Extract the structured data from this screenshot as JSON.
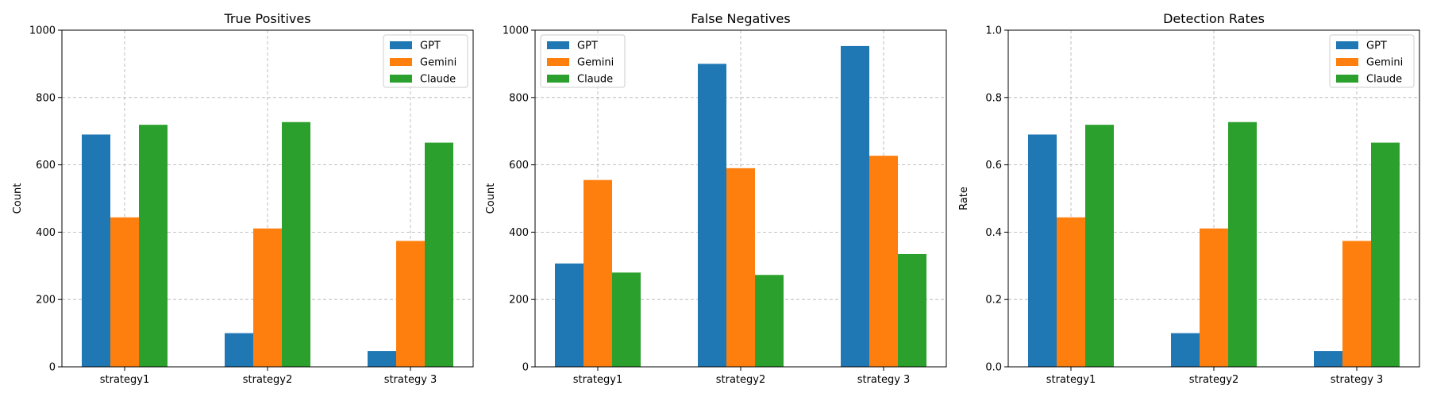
{
  "colors": {
    "GPT": "#1f77b4",
    "Gemini": "#ff7f0e",
    "Claude": "#2ca02c",
    "grid": "#b0b0b0",
    "axis": "#000000"
  },
  "chart_data": [
    {
      "type": "bar",
      "title": "True Positives",
      "xlabel": "",
      "ylabel": "Count",
      "ylim": [
        0,
        1000
      ],
      "yticks": [
        "0",
        "200",
        "400",
        "600",
        "800",
        "1000"
      ],
      "categories": [
        "strategy1",
        "strategy2",
        "strategy 3"
      ],
      "grid": true,
      "legend_position": "top-right",
      "series": [
        {
          "name": "GPT",
          "values": [
            690,
            100,
            47
          ]
        },
        {
          "name": "Gemini",
          "values": [
            444,
            411,
            374
          ]
        },
        {
          "name": "Claude",
          "values": [
            719,
            727,
            666
          ]
        }
      ]
    },
    {
      "type": "bar",
      "title": "False Negatives",
      "xlabel": "",
      "ylabel": "Count",
      "ylim": [
        0,
        1000
      ],
      "yticks": [
        "0",
        "200",
        "400",
        "600",
        "800",
        "1000"
      ],
      "categories": [
        "strategy1",
        "strategy2",
        "strategy 3"
      ],
      "grid": true,
      "legend_position": "top-left",
      "series": [
        {
          "name": "GPT",
          "values": [
            307,
            900,
            953
          ]
        },
        {
          "name": "Gemini",
          "values": [
            555,
            590,
            627
          ]
        },
        {
          "name": "Claude",
          "values": [
            280,
            273,
            335
          ]
        }
      ]
    },
    {
      "type": "bar",
      "title": "Detection Rates",
      "xlabel": "",
      "ylabel": "Rate",
      "ylim": [
        0,
        1
      ],
      "yticks": [
        "0.0",
        "0.2",
        "0.4",
        "0.6",
        "0.8",
        "1.0"
      ],
      "categories": [
        "strategy1",
        "strategy2",
        "strategy 3"
      ],
      "grid": true,
      "legend_position": "top-right",
      "series": [
        {
          "name": "GPT",
          "values": [
            0.69,
            0.1,
            0.047
          ]
        },
        {
          "name": "Gemini",
          "values": [
            0.444,
            0.411,
            0.374
          ]
        },
        {
          "name": "Claude",
          "values": [
            0.719,
            0.727,
            0.666
          ]
        }
      ]
    }
  ]
}
